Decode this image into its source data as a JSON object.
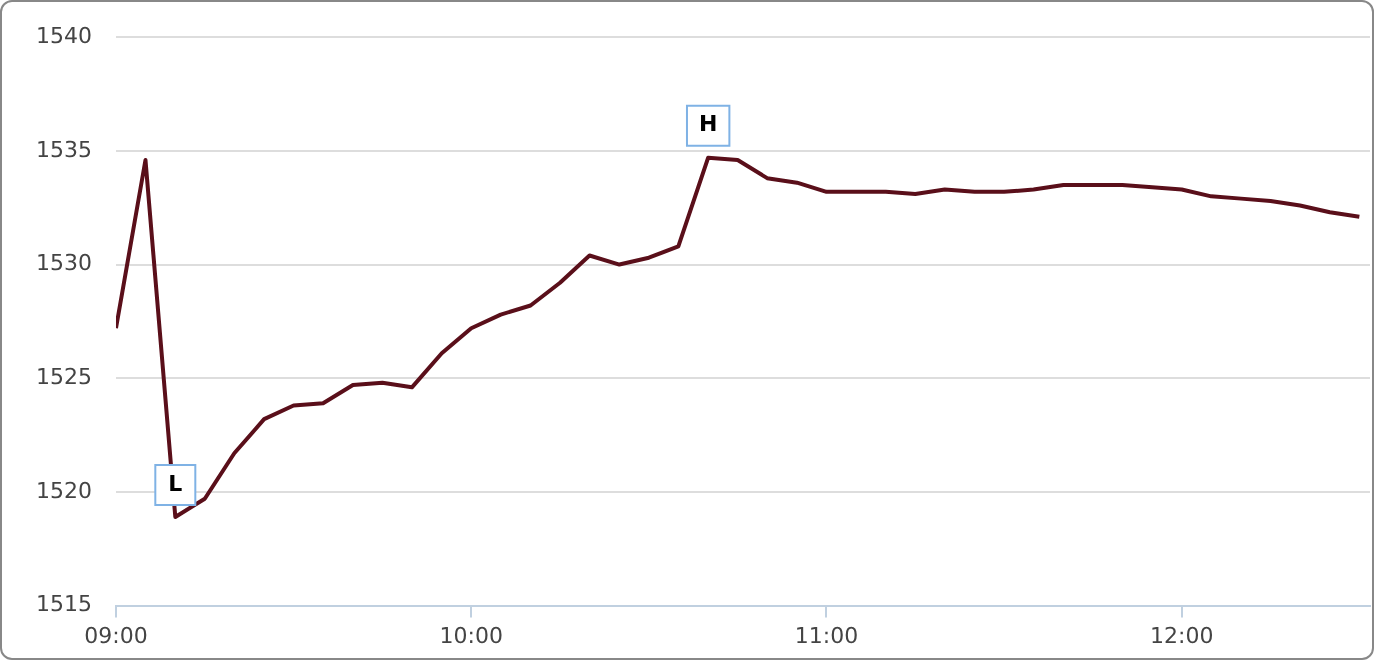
{
  "chart_data": {
    "type": "line",
    "color": "#5a0f1a",
    "marker": "none",
    "grid": "y",
    "x": [
      9,
      9.083,
      9.167,
      9.25,
      9.333,
      9.417,
      9.5,
      9.583,
      9.667,
      9.75,
      9.833,
      9.917,
      10,
      10.083,
      10.167,
      10.25,
      10.333,
      10.417,
      10.5,
      10.583,
      10.667,
      10.75,
      10.833,
      10.917,
      11,
      11.083,
      11.167,
      11.25,
      11.333,
      11.417,
      11.5,
      11.583,
      11.667,
      11.75,
      11.833,
      11.917,
      12,
      12.083,
      12.167,
      12.25,
      12.333,
      12.417,
      12.5
    ],
    "values": [
      1527.2,
      1534.6,
      1518.9,
      1519.7,
      1521.7,
      1523.2,
      1523.8,
      1523.9,
      1524.7,
      1524.8,
      1524.6,
      1526.1,
      1527.2,
      1527.8,
      1528.2,
      1529.2,
      1530.4,
      1530.0,
      1530.3,
      1530.8,
      1534.7,
      1534.6,
      1533.8,
      1533.6,
      1533.2,
      1533.2,
      1533.2,
      1533.1,
      1533.3,
      1533.2,
      1533.2,
      1533.3,
      1533.5,
      1533.5,
      1533.5,
      1533.4,
      1533.3,
      1533.0,
      1532.9,
      1532.8,
      1532.6,
      1532.3,
      1532.1
    ],
    "xlim": [
      9,
      12.53
    ],
    "xticks": [
      {
        "value": 9,
        "label": "09:00"
      },
      {
        "value": 10,
        "label": "10:00"
      },
      {
        "value": 11,
        "label": "11:00"
      },
      {
        "value": 12,
        "label": "12:00"
      }
    ],
    "ylim": [
      1515,
      1540
    ],
    "yticks": [
      1515,
      1520,
      1525,
      1530,
      1535,
      1540
    ],
    "annotations": [
      {
        "text": "H",
        "x": 10.667,
        "y": 1534.7
      },
      {
        "text": "L",
        "x": 9.167,
        "y": 1518.9
      }
    ]
  }
}
